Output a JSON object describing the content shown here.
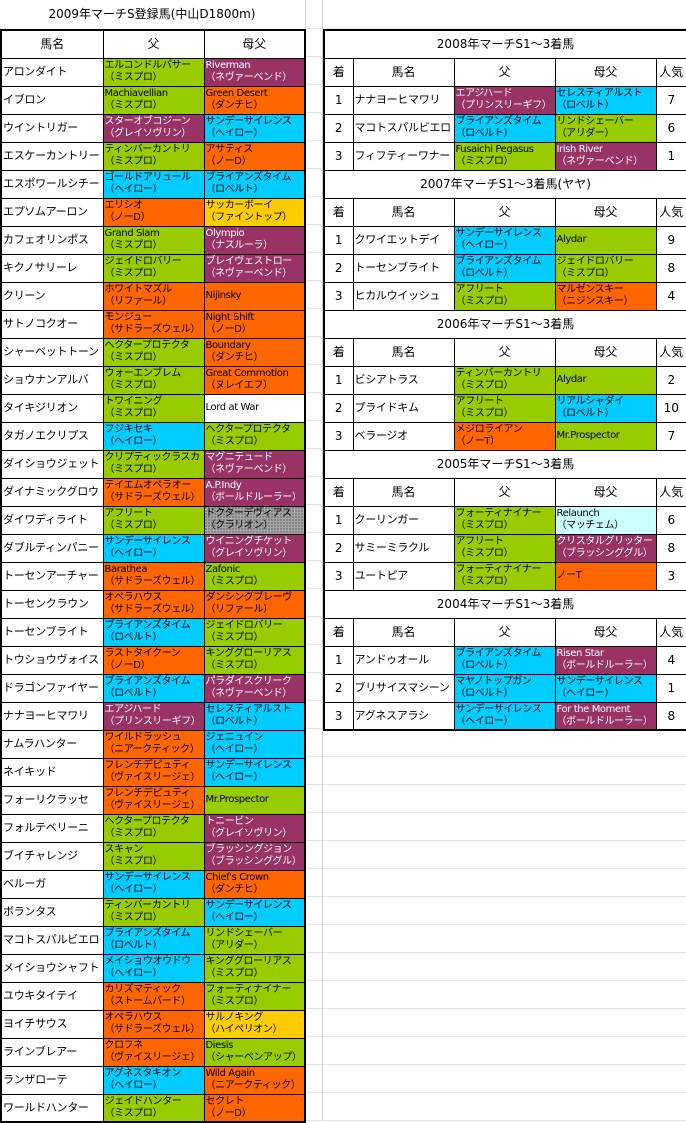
{
  "palette": {
    "g": "#99cc00",
    "o": "#ff6600",
    "p": "#993366",
    "c": "#00ccff",
    "y": "#ffcc00",
    "w": "#ffffff",
    "gray": "#a6a6a6",
    "lc": "#ccffff"
  },
  "left": {
    "title": "2009年マーチS登録馬(中山D1800m)",
    "headers": [
      "馬名",
      "父",
      "母父"
    ],
    "rows": [
      {
        "name": "アロンダイト",
        "sire": "エルコンドルパサー\n（ミスプロ）",
        "sc": "g",
        "dam": "Riverman\n（ネヴァーベンド）",
        "dc": "p"
      },
      {
        "name": "イブロン",
        "sire": "Machiavellian\n（ミスプロ）",
        "sc": "g",
        "dam": "Green Desert\n（ダンチヒ）",
        "dc": "o"
      },
      {
        "name": "ウイントリガー",
        "sire": "スターオブコジーン\n（グレイソヴリン）",
        "sc": "p",
        "dam": "サンデーサイレンス\n（ヘイロー）",
        "dc": "c"
      },
      {
        "name": "エスケーカントリー",
        "sire": "ティンバーカントリ\n（ミスプロ）",
        "sc": "g",
        "dam": "アサティス\n（ノーD）",
        "dc": "o"
      },
      {
        "name": "エスポワールシチー",
        "sire": "ゴールドアリュール\n（ヘイロー）",
        "sc": "c",
        "dam": "ブライアンズタイム\n（ロベルト）",
        "dc": "c"
      },
      {
        "name": "エプソムアーロン",
        "sire": "エリシオ\n（ノーD）",
        "sc": "o",
        "dam": "サッカーボーイ\n（ファイントップ）",
        "dc": "y"
      },
      {
        "name": "カフェオリンポス",
        "sire": "Grand Slam\n（ミスプロ）",
        "sc": "g",
        "dam": "Olympio\n（ナスルーラ）",
        "dc": "p"
      },
      {
        "name": "キクノサリーレ",
        "sire": "ジェイドロバリー\n（ミスプロ）",
        "sc": "g",
        "dam": "ブレイヴェストロー\n（ネヴァーベンド）",
        "dc": "p"
      },
      {
        "name": "クリーン",
        "sire": "ホワイトマズル\n（リファール）",
        "sc": "o",
        "dam": "Nijinsky",
        "dc": "o"
      },
      {
        "name": "サトノコクオー",
        "sire": "モンジュー\n（サドラーズウェル）",
        "sc": "o",
        "dam": "Night Shift\n（ノーD）",
        "dc": "o"
      },
      {
        "name": "シャーベットトーン",
        "sire": "ヘクタープロテクタ\n（ミスプロ）",
        "sc": "g",
        "dam": "Boundary\n（ダンチヒ）",
        "dc": "o"
      },
      {
        "name": "ショウナンアルバ",
        "sire": "ウォーエンブレム\n（ミスプロ）",
        "sc": "g",
        "dam": "Great Commotion\n（ヌレイエフ）",
        "dc": "o"
      },
      {
        "name": "タイキジリオン",
        "sire": "トワイニング\n（ミスプロ）",
        "sc": "g",
        "dam": "Lord at War",
        "dc": "w"
      },
      {
        "name": "タガノエクリプス",
        "sire": "フジキセキ\n（ヘイロー）",
        "sc": "c",
        "dam": "ヘクタープロテクタ\n（ミスプロ）",
        "dc": "g"
      },
      {
        "name": "ダイショウジェット",
        "sire": "クリプティックラスカ\n（ミスプロ）",
        "sc": "g",
        "dam": "マグニテュード\n（ネヴァーベンド）",
        "dc": "p"
      },
      {
        "name": "ダイナミックグロウ",
        "sire": "テイエムオペラオー\n（サドラーズウェル）",
        "sc": "o",
        "dam": "A.P.Indy\n（ボールドルーラー）",
        "dc": "p"
      },
      {
        "name": "ダイワディライト",
        "sire": "アフリート\n（ミスプロ）",
        "sc": "g",
        "dam": "ドクターデヴィアス\n（クラリオン）",
        "dc": "gray"
      },
      {
        "name": "ダブルティンパニー",
        "sire": "サンデーサイレンス\n（ヘイロー）",
        "sc": "c",
        "dam": "ウイニングチケット\n（グレイソヴリン）",
        "dc": "p"
      },
      {
        "name": "トーセンアーチャー",
        "sire": "Barathea\n（サドラーズウェル）",
        "sc": "o",
        "dam": "Zafonic\n（ミスプロ）",
        "dc": "g"
      },
      {
        "name": "トーセンクラウン",
        "sire": "オペラハウス\n（サドラーズウェル）",
        "sc": "o",
        "dam": "ダンシングブレーヴ\n（リファール）",
        "dc": "o"
      },
      {
        "name": "トーセンブライト",
        "sire": "ブライアンズタイム\n（ロベルト）",
        "sc": "c",
        "dam": "ジェイドロバリー\n（ミスプロ）",
        "dc": "g"
      },
      {
        "name": "トウショウヴォイス",
        "sire": "ラストタイクーン\n（ノーD）",
        "sc": "o",
        "dam": "キンググローリアス\n（ミスプロ）",
        "dc": "g"
      },
      {
        "name": "ドラゴンファイヤー",
        "sire": "ブライアンズタイム\n（ロベルト）",
        "sc": "c",
        "dam": "パラダイスクリーク\n（ネヴァーベンド）",
        "dc": "p"
      },
      {
        "name": "ナナヨーヒマワリ",
        "sire": "エアジハード\n（プリンスリーギフ）",
        "sc": "p",
        "dam": "セレスティアルスト\n（ロベルト）",
        "dc": "c"
      },
      {
        "name": "ナムラハンター",
        "sire": "ワイルドラッシュ\n（ニアークティック）",
        "sc": "o",
        "dam": "ジェニュイン\n（ヘイロー）",
        "dc": "c"
      },
      {
        "name": "ネイキッド",
        "sire": "フレンチデピュティ\n（ヴァイスリージェ）",
        "sc": "o",
        "dam": "サンデーサイレンス\n（ヘイロー）",
        "dc": "c"
      },
      {
        "name": "フォーリクラッセ",
        "sire": "フレンチデピュティ\n（ヴァイスリージェ）",
        "sc": "o",
        "dam": "Mr.Prospector",
        "dc": "g"
      },
      {
        "name": "フォルテベリーニ",
        "sire": "ヘクタープロテクタ\n（ミスプロ）",
        "sc": "g",
        "dam": "トニービン\n（グレイソヴリン）",
        "dc": "p"
      },
      {
        "name": "ブイチャレンジ",
        "sire": "スキャン\n（ミスプロ）",
        "sc": "g",
        "dam": "ブラッシングジョン\n（ブラッシンググル）",
        "dc": "p"
      },
      {
        "name": "ベルーガ",
        "sire": "サンデーサイレンス\n（ヘイロー）",
        "sc": "c",
        "dam": "Chief's Crown\n（ダンチヒ）",
        "dc": "o"
      },
      {
        "name": "ボランタス",
        "sire": "ティンバーカントリ\n（ミスプロ）",
        "sc": "g",
        "dam": "サンデーサイレンス\n（ヘイロー）",
        "dc": "c"
      },
      {
        "name": "マコトスパルビエロ",
        "sire": "ブライアンズタイム\n（ロベルト）",
        "sc": "c",
        "dam": "リンドシェーバー\n（アリダー）",
        "dc": "g"
      },
      {
        "name": "メイショウシャフト",
        "sire": "メイショウオウドウ\n（ヘイロー）",
        "sc": "c",
        "dam": "キンググローリアス\n（ミスプロ）",
        "dc": "g"
      },
      {
        "name": "ユウキタイテイ",
        "sire": "カリズマティック\n（ストームバード）",
        "sc": "o",
        "dam": "フォーティナイナー\n（ミスプロ）",
        "dc": "g"
      },
      {
        "name": "ヨイチサウス",
        "sire": "オペラハウス\n（サドラーズウェル）",
        "sc": "o",
        "dam": "サルノキング\n（ハイペリオン）",
        "dc": "y"
      },
      {
        "name": "ラインブレアー",
        "sire": "クロフネ\n（ヴァイスリージェ）",
        "sc": "o",
        "dam": "Diesis\n（シャーペンアップ）",
        "dc": "g"
      },
      {
        "name": "ランザローテ",
        "sire": "アグネスタキオン\n（ヘイロー）",
        "sc": "c",
        "dam": "Wild Again\n（ニアークティック）",
        "dc": "o"
      },
      {
        "name": "ワールドハンター",
        "sire": "ジェイドハンター\n（ミスプロ）",
        "sc": "g",
        "dam": "セクレト\n（ノーD）",
        "dc": "o"
      }
    ]
  },
  "right": {
    "headers": [
      "着",
      "馬名",
      "父",
      "母父",
      "人気"
    ],
    "sections": [
      {
        "title": "2008年マーチS1～3着馬",
        "rows": [
          {
            "pos": "1",
            "name": "ナナヨーヒマワリ",
            "sire": "エアジハード\n（プリンスリーギフ）",
            "sc": "p",
            "dam": "セレスティアルスト\n（ロベルト）",
            "dc": "c",
            "pop": "7"
          },
          {
            "pos": "2",
            "name": "マコトスパルビエロ",
            "sire": "ブライアンズタイム\n（ロベルト）",
            "sc": "c",
            "dam": "リンドシェーバー\n（アリダー）",
            "dc": "g",
            "pop": "6"
          },
          {
            "pos": "3",
            "name": "フィフティーワナー",
            "sire": "Fusaichi Pegasus\n（ミスプロ）",
            "sc": "g",
            "dam": "Irish River\n（ネヴァーベンド）",
            "dc": "p",
            "pop": "1"
          }
        ]
      },
      {
        "title": "2007年マーチS1～3着馬(ヤヤ)",
        "rows": [
          {
            "pos": "1",
            "name": "クワイエットデイ",
            "sire": "サンデーサイレンス\n（ヘイロー）",
            "sc": "c",
            "dam": "Alydar",
            "dc": "g",
            "pop": "9"
          },
          {
            "pos": "2",
            "name": "トーセンブライト",
            "sire": "ブライアンズタイム\n（ロベルト）",
            "sc": "c",
            "dam": "ジェイドロバリー\n（ミスプロ）",
            "dc": "g",
            "pop": "8"
          },
          {
            "pos": "3",
            "name": "ヒカルウイッシュ",
            "sire": "アフリート\n（ミスプロ）",
            "sc": "g",
            "dam": "マルゼンスキー\n（ニジンスキー）",
            "dc": "o",
            "pop": "4"
          }
        ]
      },
      {
        "title": "2006年マーチS1～3着馬",
        "rows": [
          {
            "pos": "1",
            "name": "ビシアトラス",
            "sire": "ティンバーカントリ\n（ミスプロ）",
            "sc": "g",
            "dam": "Alydar",
            "dc": "g",
            "pop": "2"
          },
          {
            "pos": "2",
            "name": "プライドキム",
            "sire": "アフリート\n（ミスプロ）",
            "sc": "g",
            "dam": "リアルシャダイ\n（ロベルト）",
            "dc": "c",
            "pop": "10"
          },
          {
            "pos": "3",
            "name": "ベラージオ",
            "sire": "メジロライアン\n（ノーT）",
            "sc": "o",
            "dam": "Mr.Prospector",
            "dc": "g",
            "pop": "7"
          }
        ]
      },
      {
        "title": "2005年マーチS1～3着馬",
        "rows": [
          {
            "pos": "1",
            "name": "クーリンガー",
            "sire": "フォーティナイナー\n（ミスプロ）",
            "sc": "g",
            "dam": "Relaunch\n（マッチェム）",
            "dc": "lc",
            "pop": "6"
          },
          {
            "pos": "2",
            "name": "サミーミラクル",
            "sire": "アフリート\n（ミスプロ）",
            "sc": "g",
            "dam": "クリスタルグリッター\n（ブラッシンググル）",
            "dc": "p",
            "pop": "8"
          },
          {
            "pos": "3",
            "name": "ユートピア",
            "sire": "フォーティナイナー\n（ミスプロ）",
            "sc": "g",
            "dam": "ノーT",
            "dc": "o",
            "pop": "3"
          }
        ]
      },
      {
        "title": "2004年マーチS1～3着馬",
        "rows": [
          {
            "pos": "1",
            "name": "アンドゥオール",
            "sire": "ブライアンズタイム\n（ロベルト）",
            "sc": "c",
            "dam": "Risen Star\n（ボールドルーラー）",
            "dc": "p",
            "pop": "4"
          },
          {
            "pos": "2",
            "name": "ブリサイスマシーン",
            "sire": "マヤノトップガン\n（ロベルト）",
            "sc": "c",
            "dam": "サンデーサイレンス\n（ヘイロー）",
            "dc": "c",
            "pop": "1"
          },
          {
            "pos": "3",
            "name": "アグネスアラシ",
            "sire": "サンデーサイレンス\n（ヘイロー）",
            "sc": "c",
            "dam": "For the Moment\n（ボールドルーラー）",
            "dc": "p",
            "pop": "8"
          }
        ]
      }
    ]
  }
}
